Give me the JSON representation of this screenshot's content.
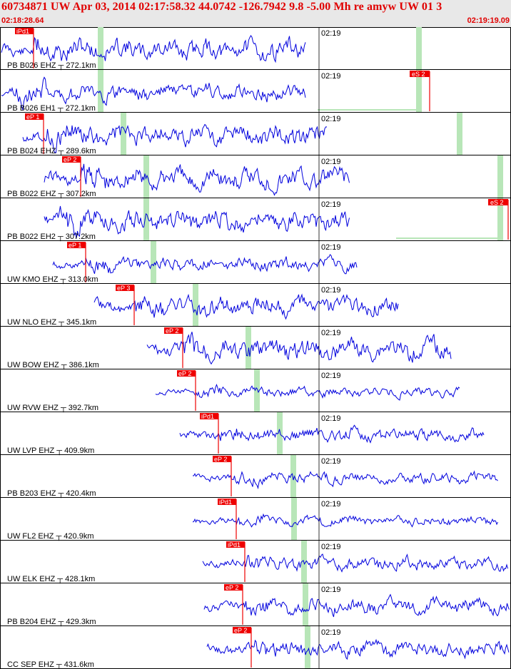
{
  "header": {
    "title": "60734871 UW Apr 03, 2014 02:17:58.32    44.0742 -126.7942  9.8 -5.00 Mh re amyw UW 01    3",
    "start_time": "02:18:28.64",
    "end_time": "02:19:19.09"
  },
  "colors": {
    "header_text": "#e00000",
    "trace": "#0000dd",
    "pick": "#ee0000",
    "marker": "#b8e6b8",
    "header_bg": "#e8e8e8"
  },
  "panels": [
    {
      "label": "PB B026 EHZ",
      "dist": "272.1km",
      "time": "02:19",
      "p": "iPd1",
      "s": "",
      "seed": 11
    },
    {
      "label": "PB B026 EH1",
      "dist": "272.1km",
      "time": "02:19",
      "p": "",
      "s": "eS 2",
      "seed": 23
    },
    {
      "label": "PB B024 EHZ",
      "dist": "289.6km",
      "time": "02:19",
      "p": "eP 1",
      "s": "",
      "seed": 37
    },
    {
      "label": "PB B022 EHZ",
      "dist": "307.2km",
      "time": "02:19",
      "p": "eP 2",
      "s": "",
      "seed": 41
    },
    {
      "label": "PB B022 EH2",
      "dist": "307.2km",
      "time": "02:19",
      "p": "",
      "s": "eS 2",
      "seed": 53
    },
    {
      "label": "UW KMO EHZ",
      "dist": "313.0km",
      "time": "02:19",
      "p": "eP 1",
      "s": "",
      "seed": 61
    },
    {
      "label": "UW NLO EHZ",
      "dist": "345.1km",
      "time": "02:19",
      "p": "eP 3",
      "s": "",
      "seed": 71
    },
    {
      "label": "UW BOW EHZ",
      "dist": "386.1km",
      "time": "02:19",
      "p": "eP 2",
      "s": "",
      "seed": 83
    },
    {
      "label": "UW RVW EHZ",
      "dist": "392.7km",
      "time": "02:19",
      "p": "eP 2",
      "s": "",
      "seed": 97
    },
    {
      "label": "UW LVP EHZ",
      "dist": "409.9km",
      "time": "02:19",
      "p": "iPd1",
      "s": "",
      "seed": 101
    },
    {
      "label": "PB B203 EHZ",
      "dist": "420.4km",
      "time": "02:19",
      "p": "eP 2",
      "s": "",
      "seed": 113
    },
    {
      "label": "UW FL2 EHZ",
      "dist": "420.9km",
      "time": "02:19",
      "p": "iPd1",
      "s": "",
      "seed": 127
    },
    {
      "label": "UW ELK EHZ",
      "dist": "428.1km",
      "time": "02:19",
      "p": "iPd1",
      "s": "",
      "seed": 131
    },
    {
      "label": "PB B204 EHZ",
      "dist": "429.3km",
      "time": "02:19",
      "p": "eP 2",
      "s": "",
      "seed": 139
    },
    {
      "label": "CC SEP EHZ",
      "dist": "431.6km",
      "time": "02:19",
      "p": "eP 2",
      "s": "",
      "seed": 149
    }
  ]
}
